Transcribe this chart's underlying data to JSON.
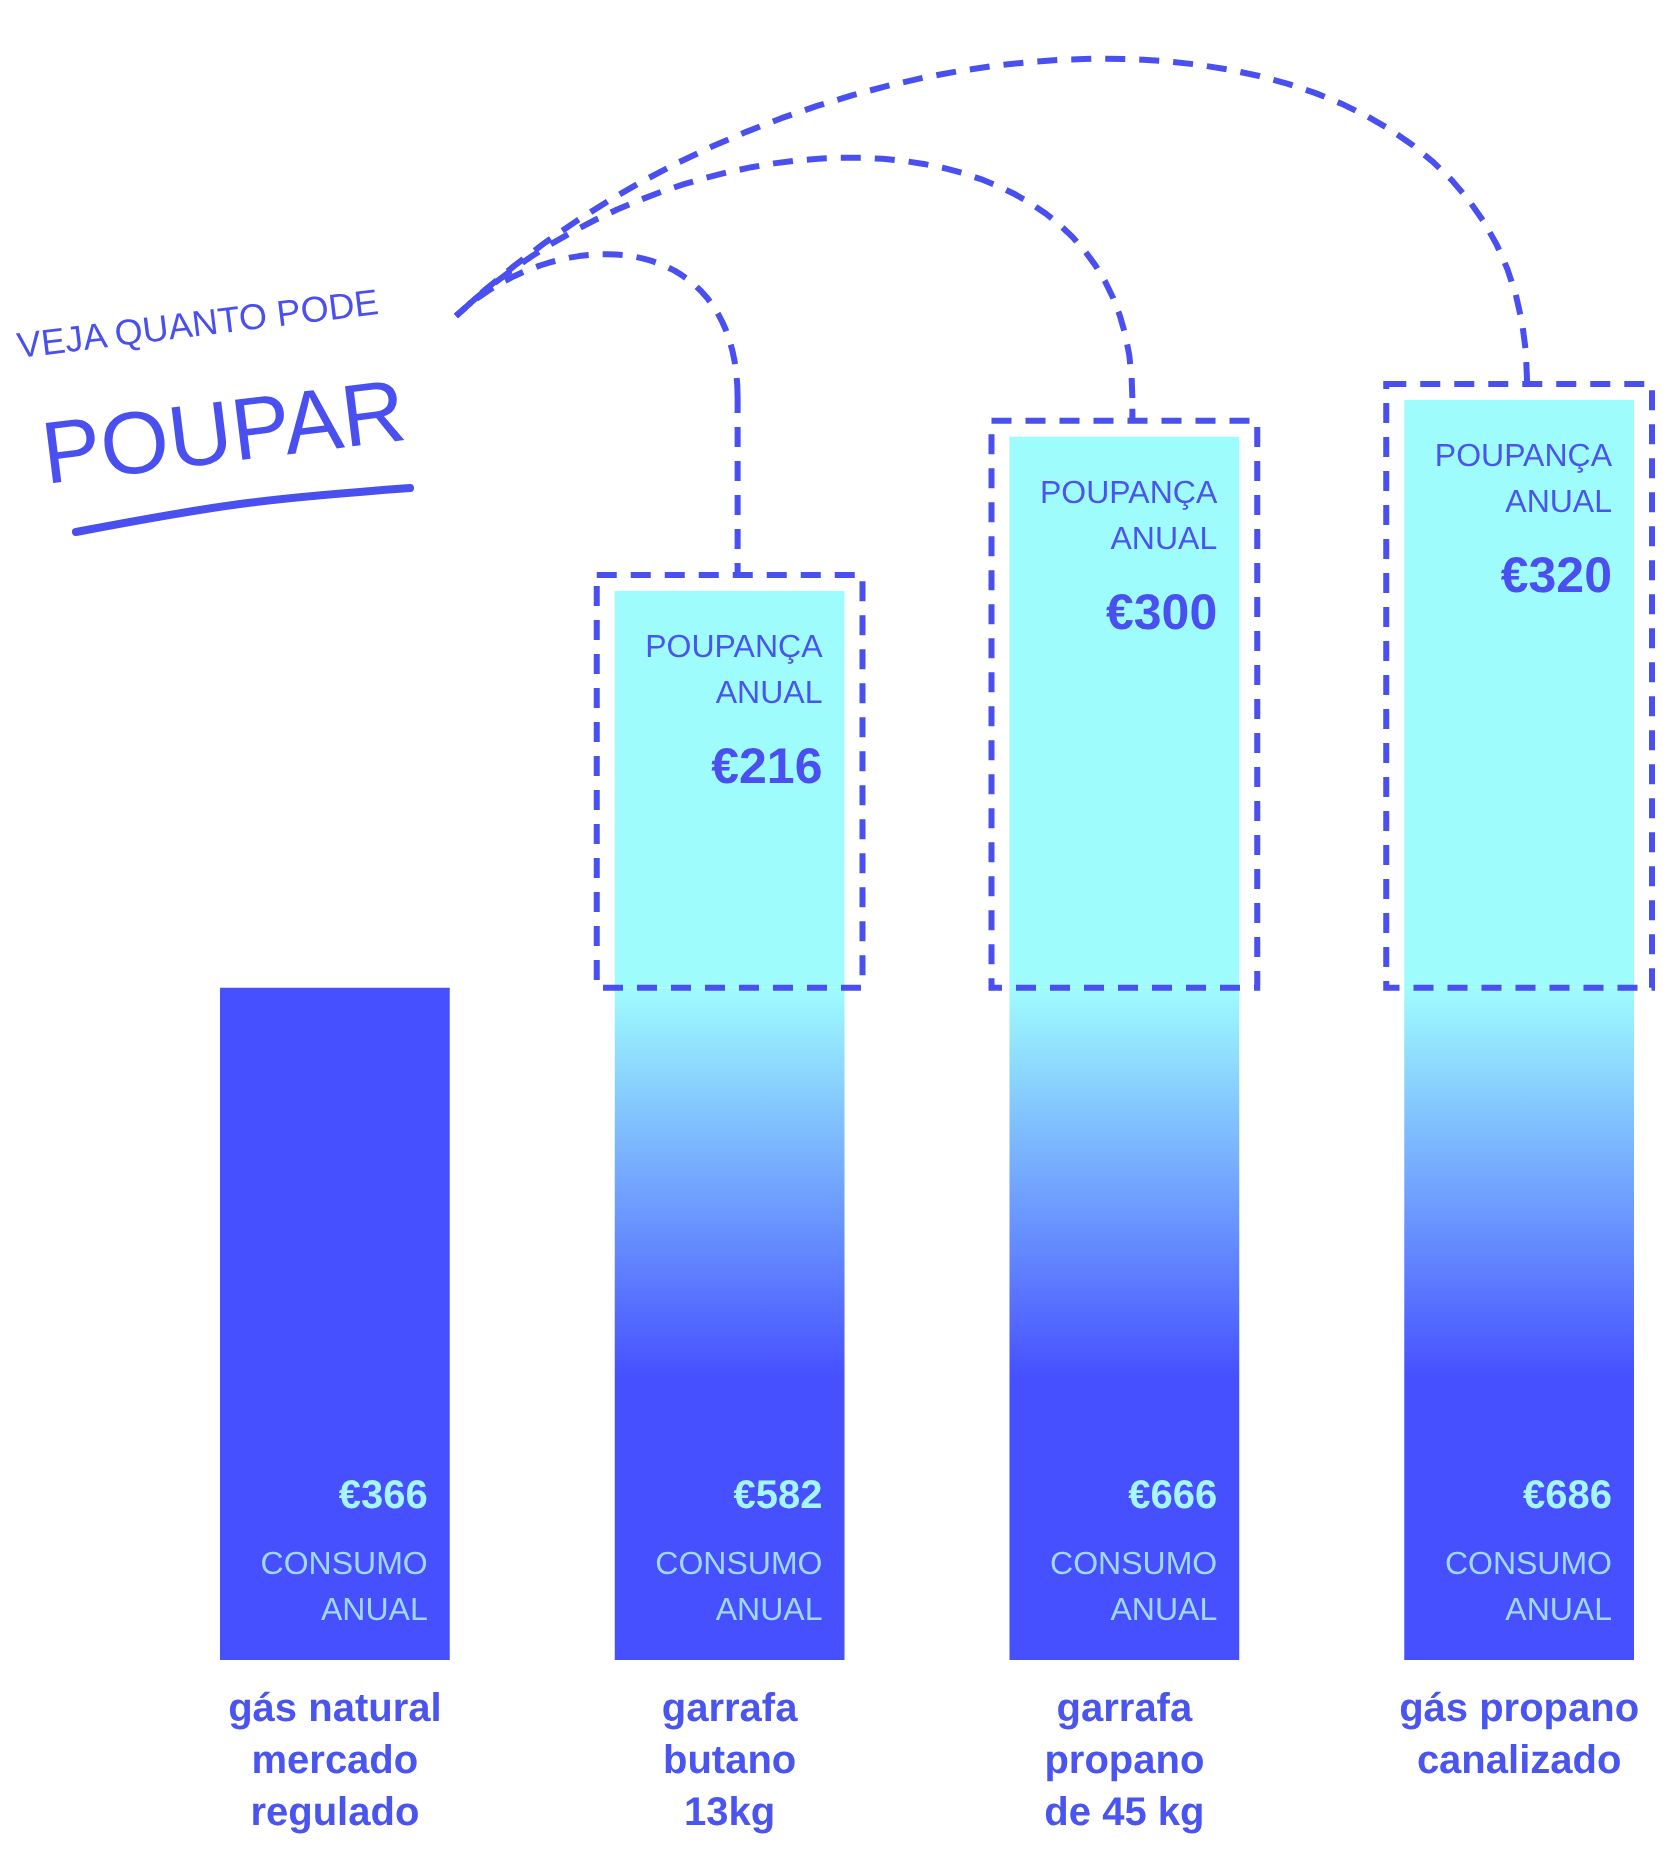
{
  "chart_data": {
    "type": "bar",
    "stacked": true,
    "categories": [
      "gás natural\nmercado\nregulado",
      "garrafa\nbutano\n13kg",
      "garrafa\npropano\nde 45 kg",
      "gás propano\ncanalizado"
    ],
    "series": [
      {
        "name": "CONSUMO ANUAL",
        "color": "#4650ff",
        "values": [
          366,
          366,
          366,
          366
        ]
      },
      {
        "name": "POUPANÇA ANUAL",
        "color": "#9ffcfd",
        "values": [
          null,
          216,
          300,
          320
        ],
        "value_labels": [
          null,
          "€216",
          "€300",
          "€320"
        ]
      }
    ],
    "totals": [
      "€366",
      "€582",
      "€666",
      "€686"
    ],
    "annotations": [
      "VEJA QUANTO PODE",
      "POUPAR"
    ]
  }
}
